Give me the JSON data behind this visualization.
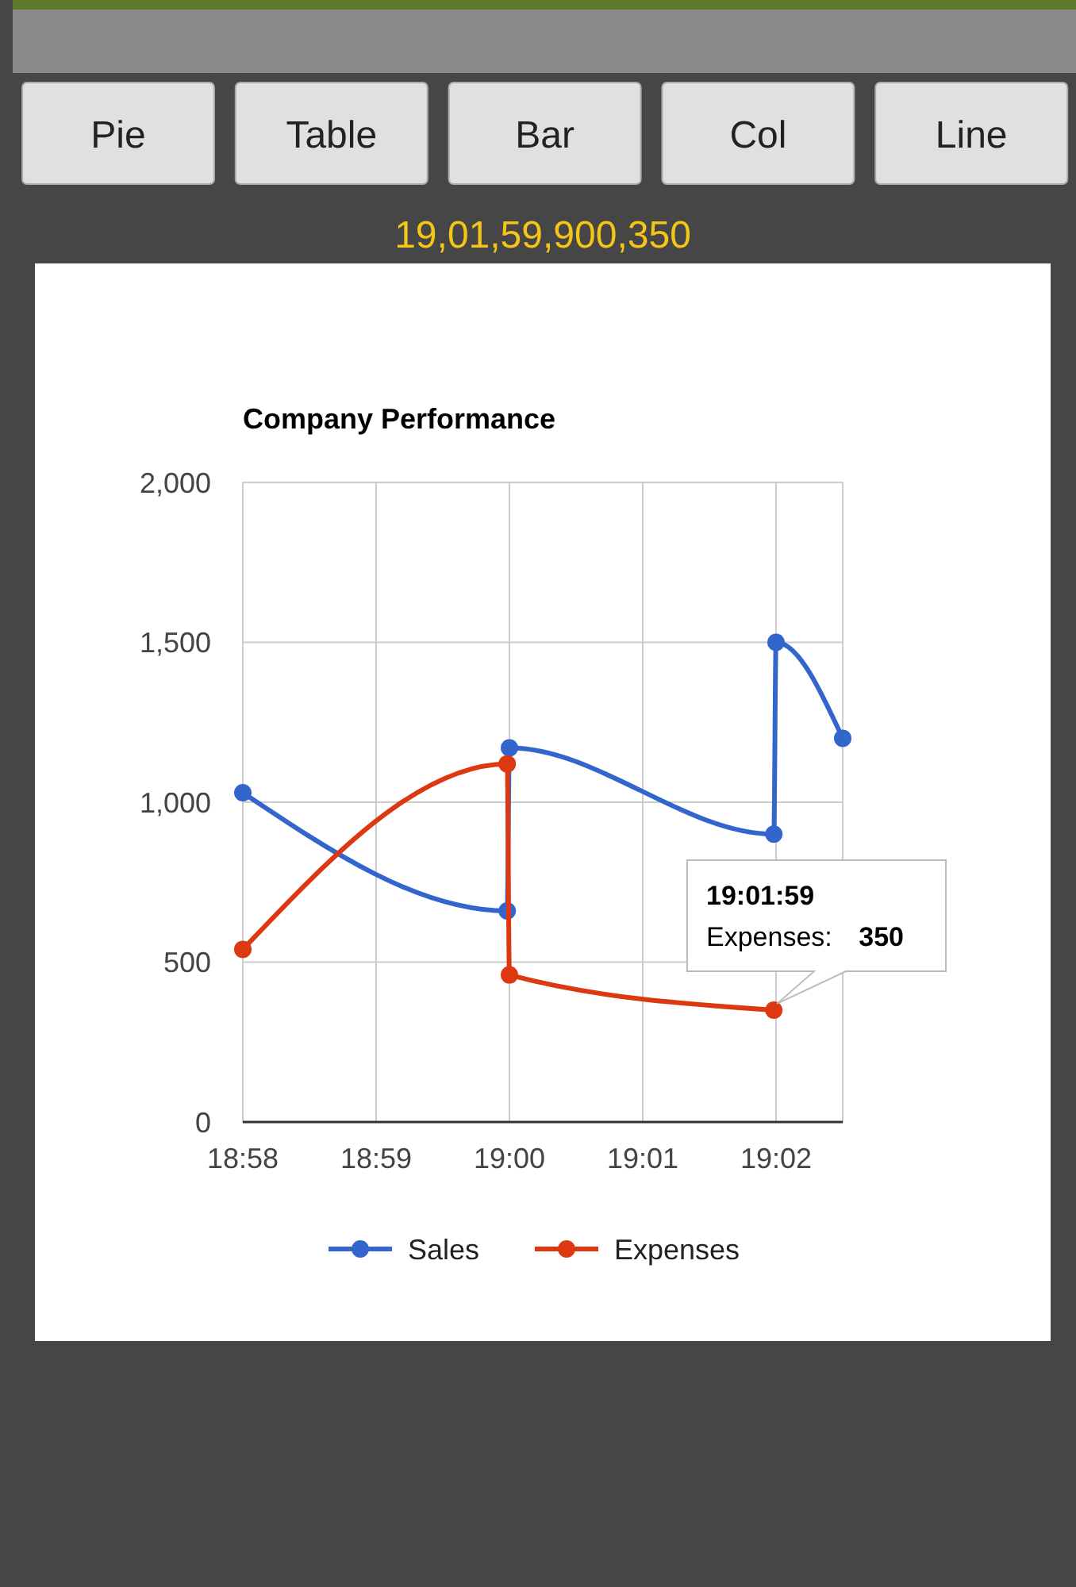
{
  "chart_data": [
    {
      "type": "other",
      "annotations": [
        "Pie",
        "Table",
        "Bar",
        "Col",
        "Line",
        "19,01,59,900,350"
      ]
    },
    {
      "type": "line",
      "title": "Company Performance",
      "series": [
        {
          "name": "Sales",
          "color": "#3366cc",
          "x": [
            18.966667,
            18.999722,
            19.0,
            19.033056,
            19.033333,
            19.041667
          ],
          "values": [
            1030,
            660,
            1170,
            900,
            1500,
            1200
          ]
        },
        {
          "name": "Expenses",
          "color": "#dc3912",
          "x": [
            18.966667,
            18.999722,
            19.0,
            19.033056
          ],
          "values": [
            540,
            1120,
            460,
            350
          ]
        }
      ],
      "xlim": [
        18.966667,
        19.041667
      ],
      "xticks": [
        {
          "value": 18.966667,
          "label": "18:58"
        },
        {
          "value": 18.983333,
          "label": "18:59"
        },
        {
          "value": 19.0,
          "label": "19:00"
        },
        {
          "value": 19.016667,
          "label": "19:01"
        },
        {
          "value": 19.033333,
          "label": "19:02"
        }
      ],
      "ylim": [
        0,
        2000
      ],
      "yticks": [
        {
          "value": 0,
          "label": "0"
        },
        {
          "value": 500,
          "label": "500"
        },
        {
          "value": 1000,
          "label": "1,000"
        },
        {
          "value": 1500,
          "label": "1,500"
        },
        {
          "value": 2000,
          "label": "2,000"
        }
      ],
      "grid": true,
      "legend": "bottom",
      "marker": "circle",
      "line_style": "solid",
      "annotations": [
        {
          "text": "19:01:59\nExpenses: 350",
          "x": 19.033056,
          "y": 350
        }
      ]
    }
  ]
}
